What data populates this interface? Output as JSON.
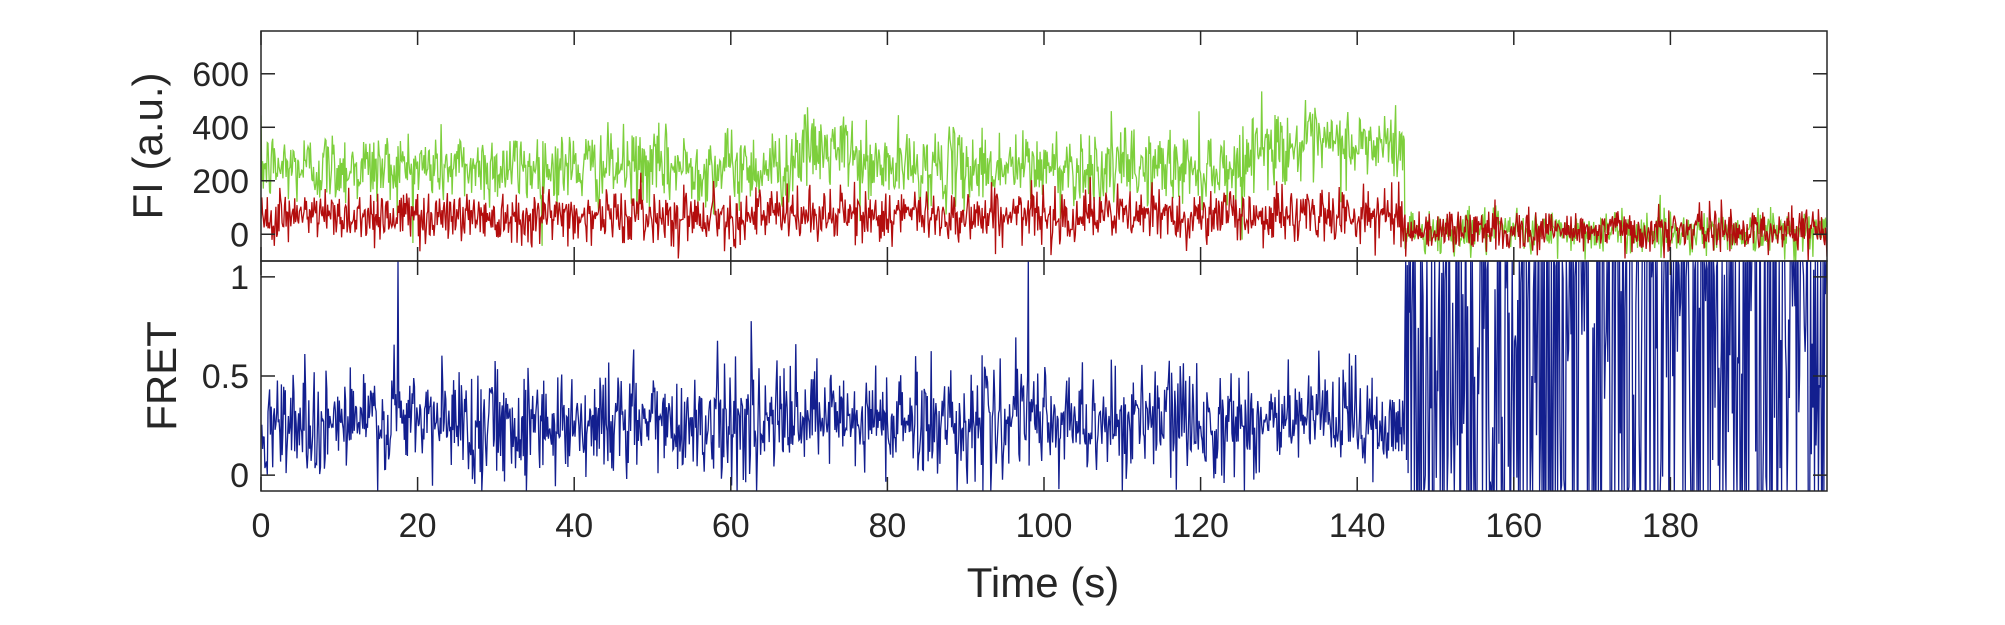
{
  "chart_data": [
    {
      "type": "line",
      "ylabel": "FI (a.u.)",
      "xlim": [
        0,
        200
      ],
      "ylim": [
        -100,
        760
      ],
      "x_ticks": [
        0,
        20,
        40,
        60,
        80,
        100,
        120,
        140,
        160,
        180
      ],
      "y_ticks": [
        0,
        200,
        400,
        600
      ],
      "y_tick_labels": [
        "0",
        "200",
        "400",
        "600"
      ],
      "grid": false,
      "series": [
        {
          "color": "#7dcf3c",
          "segments": [
            {
              "x_start": 0,
              "x_end": 146,
              "mean": 250,
              "noise": 70
            },
            {
              "x_start": 146,
              "x_end": 200,
              "mean": 10,
              "noise": 40
            }
          ],
          "bumps": [
            {
              "x_start": 68,
              "x_end": 76,
              "mean": 310
            },
            {
              "x_start": 126,
              "x_end": 146,
              "mean": 330
            }
          ]
        },
        {
          "color": "#b30d0d",
          "segments": [
            {
              "x_start": 0,
              "x_end": 146,
              "mean": 70,
              "noise": 50
            },
            {
              "x_start": 146,
              "x_end": 200,
              "mean": 15,
              "noise": 40
            }
          ],
          "bumps": []
        }
      ]
    },
    {
      "type": "line",
      "xlabel": "Time (s)",
      "ylabel": "FRET",
      "xlim": [
        0,
        200
      ],
      "ylim": [
        -0.08,
        1.08
      ],
      "x_ticks": [
        0,
        20,
        40,
        60,
        80,
        100,
        120,
        140,
        160,
        180
      ],
      "x_tick_labels": [
        "0",
        "20",
        "40",
        "60",
        "80",
        "100",
        "120",
        "140",
        "160",
        "180"
      ],
      "y_ticks": [
        0,
        0.5,
        1
      ],
      "y_tick_labels": [
        "0",
        "0.5",
        "1"
      ],
      "grid": false,
      "series": [
        {
          "color": "#131f8f",
          "segments": [
            {
              "x_start": 0,
              "x_end": 146,
              "mean": 0.27,
              "noise": 0.14
            },
            {
              "x_start": 146,
              "x_end": 200,
              "mean": 0.5,
              "noise": 0.6
            }
          ],
          "spikes": [
            {
              "x": 17.5,
              "y": 1.08
            },
            {
              "x": 98,
              "y": 1.08
            }
          ]
        }
      ]
    }
  ]
}
